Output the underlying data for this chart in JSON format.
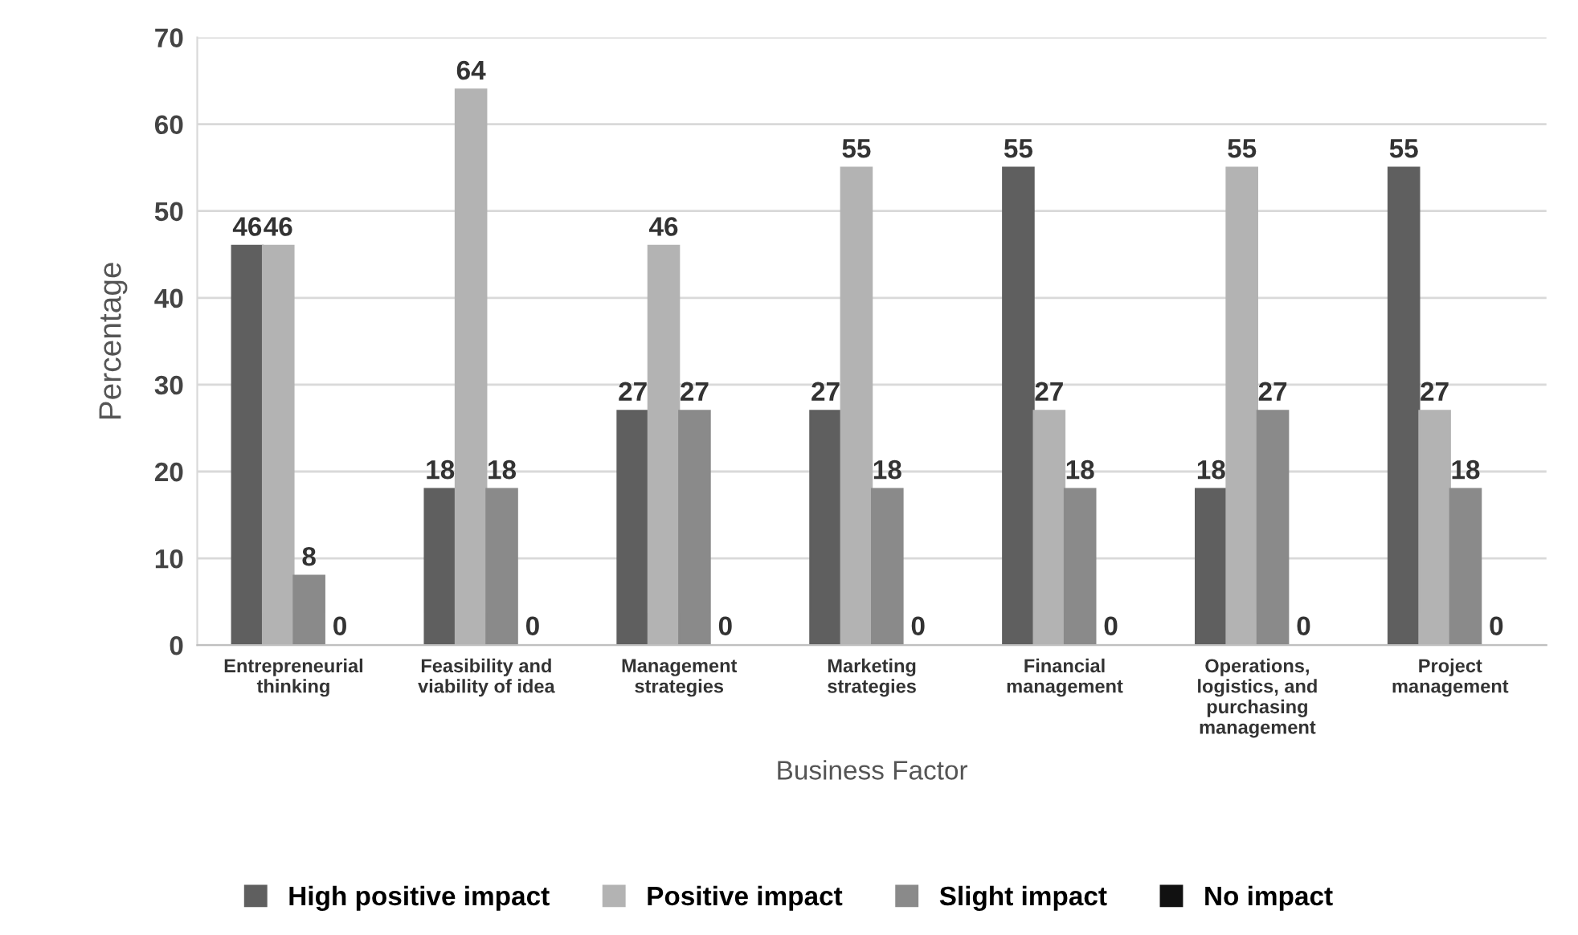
{
  "chart_data": {
    "type": "bar",
    "xlabel": "Business Factor",
    "ylabel": "Percentage",
    "categories": [
      "Entrepreneurial thinking",
      "Feasibility and viability of idea",
      "Management strategies",
      "Marketing strategies",
      "Financial management",
      "Operations, logistics, and purchasing management",
      "Project management"
    ],
    "series": [
      {
        "name": "High positive impact",
        "color": "#5f5f5f",
        "values": [
          46,
          18,
          27,
          27,
          55,
          18,
          55
        ]
      },
      {
        "name": "Positive impact",
        "color": "#b3b3b3",
        "values": [
          46,
          64,
          46,
          55,
          27,
          55,
          27
        ]
      },
      {
        "name": "Slight impact",
        "color": "#8a8a8a",
        "values": [
          8,
          18,
          27,
          18,
          18,
          27,
          18
        ]
      },
      {
        "name": "No impact",
        "color": "#111111",
        "values": [
          0,
          0,
          0,
          0,
          0,
          0,
          0
        ]
      }
    ],
    "ylim": [
      0,
      70
    ],
    "yticks": [
      0,
      10,
      20,
      30,
      40,
      50,
      60,
      70
    ],
    "grid": "y",
    "legend": "bottom",
    "data_labels": true
  }
}
